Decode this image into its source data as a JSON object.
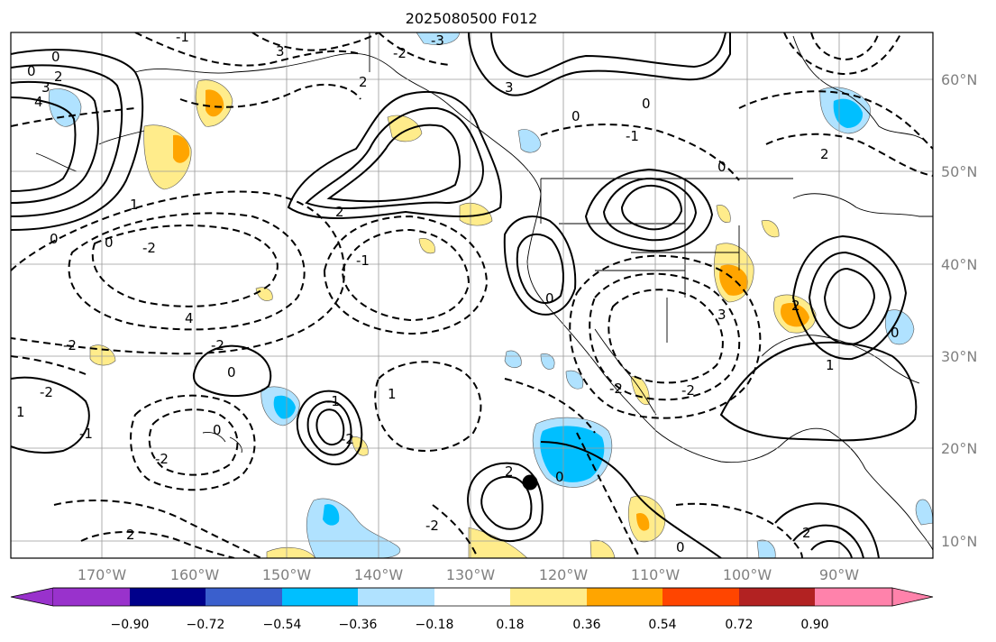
{
  "title": "2025080500 F012",
  "longitude_labels": [
    "170°W",
    "160°W",
    "150°W",
    "140°W",
    "130°W",
    "120°W",
    "110°W",
    "100°W",
    "90°W"
  ],
  "latitude_labels": [
    "60°N",
    "50°N",
    "40°N",
    "30°N",
    "20°N",
    "10°N"
  ],
  "colorbar": {
    "ticks": [
      "−0.90",
      "−0.72",
      "−0.54",
      "−0.36",
      "−0.18",
      "0.18",
      "0.36",
      "0.54",
      "0.72",
      "0.90"
    ],
    "colors": [
      "#9932cc",
      "#00008b",
      "#3a5fcd",
      "#00bfff",
      "#b0e2ff",
      "#ffffff",
      "#ffec8b",
      "#ffa500",
      "#ff4500",
      "#b22222",
      "#ff82ab"
    ]
  },
  "contour_labels": [
    "0",
    "0",
    "2",
    "3",
    "4",
    "-1",
    "3",
    "-2",
    "2",
    "-3",
    "3",
    "2",
    "1",
    "0",
    "-2",
    "0",
    "-1",
    "4",
    "-2",
    "-2",
    "0",
    "-2",
    "1",
    "-1",
    "0",
    "-2",
    "-1",
    "-2",
    "1",
    "2",
    "2",
    "0",
    "-2",
    "0",
    "0",
    "0",
    "-1",
    "0",
    "3",
    "-2",
    "1",
    "2",
    "0",
    "2",
    "2",
    "-2",
    "0"
  ],
  "marker": "typhoon-center"
}
